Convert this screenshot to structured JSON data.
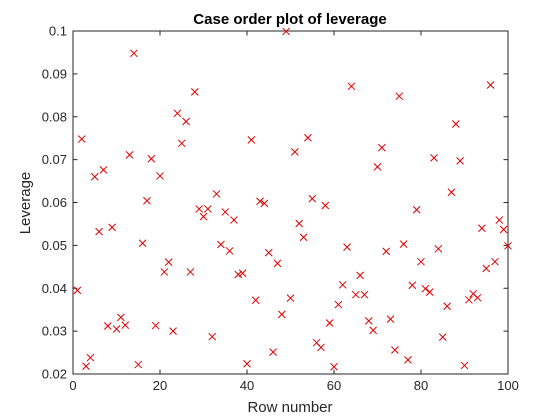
{
  "chart_data": {
    "type": "scatter",
    "title": "Case order plot of leverage",
    "xlabel": "Row number",
    "ylabel": "Leverage",
    "xlim": [
      0,
      100
    ],
    "ylim": [
      0.02,
      0.1
    ],
    "xticks": [
      0,
      20,
      40,
      60,
      80,
      100
    ],
    "yticks": [
      0.02,
      0.03,
      0.04,
      0.05,
      0.06,
      0.07,
      0.08,
      0.09,
      0.1
    ],
    "xtick_labels": [
      "0",
      "20",
      "40",
      "60",
      "80",
      "100"
    ],
    "ytick_labels": [
      "0.02",
      "0.03",
      "0.04",
      "0.05",
      "0.06",
      "0.07",
      "0.08",
      "0.09",
      "0.1"
    ],
    "grid": false,
    "marker": "x",
    "marker_color": "#e00000",
    "series": [
      {
        "x": [
          1,
          2,
          3,
          4,
          5,
          6,
          7,
          8,
          9,
          10,
          11,
          12,
          13,
          14,
          15,
          16,
          17,
          18,
          19,
          20,
          21,
          22,
          23,
          24,
          25,
          26,
          27,
          28,
          29,
          30,
          31,
          32,
          33,
          34,
          35,
          36,
          37,
          38,
          39,
          40,
          41,
          42,
          43,
          44,
          45,
          46,
          47,
          48,
          49,
          50,
          51,
          52,
          53,
          54,
          55,
          56,
          57,
          58,
          59,
          60,
          61,
          62,
          63,
          64,
          65,
          66,
          67,
          68,
          69,
          70,
          71,
          72,
          73,
          74,
          75,
          76,
          77,
          78,
          79,
          80,
          81,
          82,
          83,
          84,
          85,
          86,
          87,
          88,
          89,
          90,
          91,
          92,
          93,
          94,
          95,
          96,
          97,
          98,
          99,
          100
        ],
        "y": [
          0.0395,
          0.0748,
          0.0218,
          0.0238,
          0.066,
          0.0532,
          0.0676,
          0.0312,
          0.0542,
          0.0305,
          0.0332,
          0.0314,
          0.0711,
          0.0948,
          0.0222,
          0.0505,
          0.0604,
          0.0702,
          0.0313,
          0.0662,
          0.0438,
          0.0461,
          0.03,
          0.0808,
          0.0738,
          0.0789,
          0.0438,
          0.0858,
          0.0585,
          0.0567,
          0.0585,
          0.0287,
          0.062,
          0.0502,
          0.0578,
          0.0487,
          0.0559,
          0.0432,
          0.0435,
          0.0224,
          0.0746,
          0.0372,
          0.0603,
          0.0598,
          0.0483,
          0.0251,
          0.0458,
          0.0339,
          0.0999,
          0.0377,
          0.0718,
          0.0551,
          0.0519,
          0.0751,
          0.0609,
          0.0273,
          0.0262,
          0.0593,
          0.0319,
          0.0217,
          0.0362,
          0.0408,
          0.0496,
          0.0871,
          0.0385,
          0.043,
          0.0385,
          0.0324,
          0.0302,
          0.0683,
          0.0728,
          0.0486,
          0.0328,
          0.0256,
          0.0848,
          0.0503,
          0.0233,
          0.0407,
          0.0583,
          0.0462,
          0.0399,
          0.0391,
          0.0704,
          0.0492,
          0.0286,
          0.0358,
          0.0624,
          0.0783,
          0.0697,
          0.022,
          0.0373,
          0.0387,
          0.0378,
          0.054,
          0.0446,
          0.0874,
          0.0462,
          0.0559,
          0.0537,
          0.0499
        ]
      }
    ]
  }
}
